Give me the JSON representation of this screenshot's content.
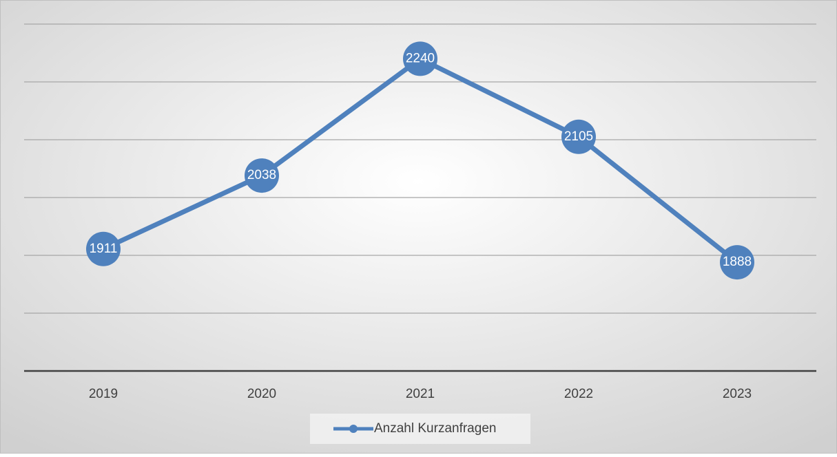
{
  "chart_data": {
    "type": "line",
    "categories": [
      "2019",
      "2020",
      "2021",
      "2022",
      "2023"
    ],
    "series": [
      {
        "name": "Anzahl Kurzanfragen",
        "color": "#4f81bd",
        "values": [
          1911,
          2038,
          2240,
          2105,
          1888
        ]
      }
    ],
    "ylim": [
      1700,
      2300
    ],
    "yticks": [
      1700,
      1800,
      1900,
      2000,
      2100,
      2200,
      2300
    ],
    "grid": true,
    "legend": "bottom"
  }
}
